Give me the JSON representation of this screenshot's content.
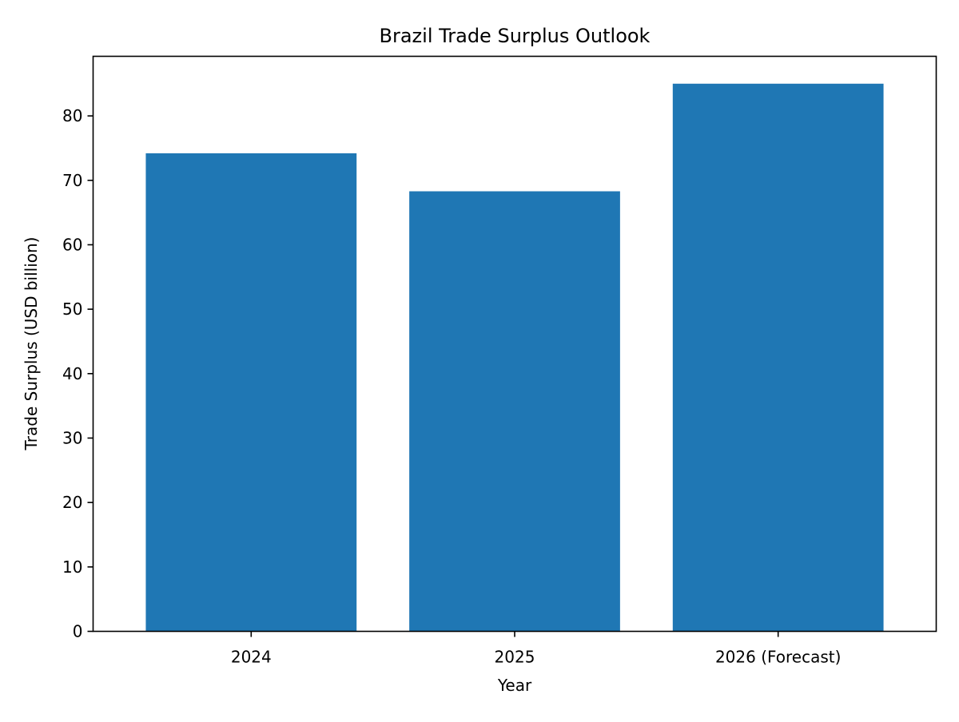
{
  "chart_data": {
    "type": "bar",
    "title": "Brazil Trade Surplus Outlook",
    "xlabel": "Year",
    "ylabel": "Trade Surplus (USD billion)",
    "categories": [
      "2024",
      "2025",
      "2026 (Forecast)"
    ],
    "values": [
      74.2,
      68.3,
      85.0
    ],
    "ylim": [
      0,
      89.25
    ],
    "yticks": [
      "0",
      "10",
      "20",
      "30",
      "40",
      "50",
      "60",
      "70",
      "80"
    ],
    "bar_color": "#1f77b4",
    "grid": false,
    "legend": false
  }
}
